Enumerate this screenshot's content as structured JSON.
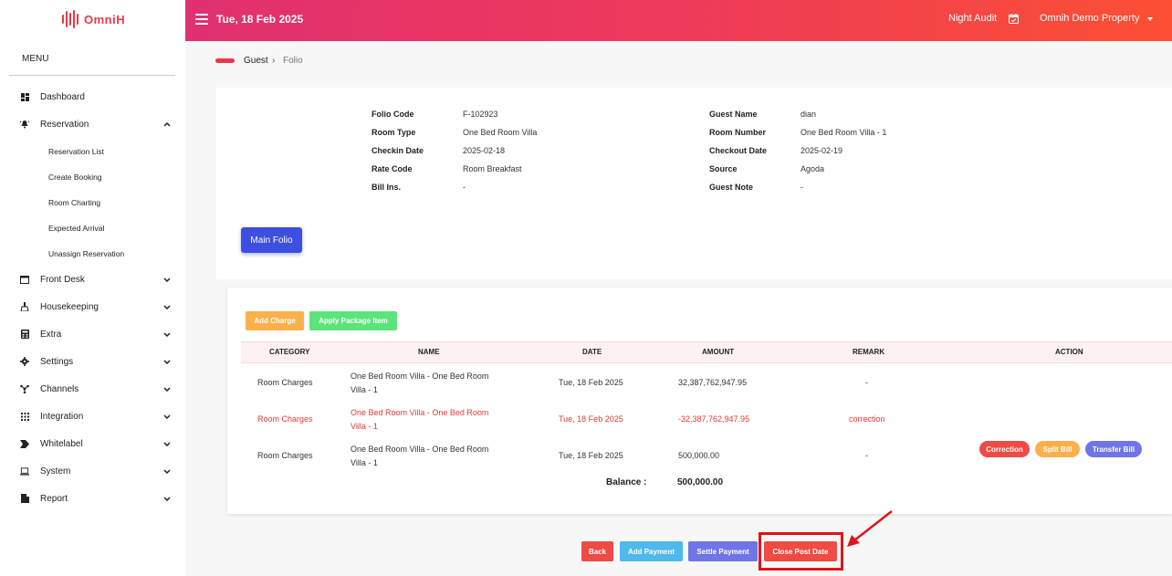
{
  "brand": {
    "name": "OmniH",
    "color": "#e8394b"
  },
  "sidebar": {
    "menu_title": "MENU",
    "items": [
      {
        "label": "Dashboard",
        "icon": "dashboard-icon",
        "expandable": false
      },
      {
        "label": "Reservation",
        "icon": "bell-icon",
        "expandable": true,
        "expanded": true
      },
      {
        "label": "Front Desk",
        "icon": "window-icon",
        "expandable": true
      },
      {
        "label": "Housekeeping",
        "icon": "broom-icon",
        "expandable": true
      },
      {
        "label": "Extra",
        "icon": "calculator-icon",
        "expandable": true
      },
      {
        "label": "Settings",
        "icon": "gear-icon",
        "expandable": true
      },
      {
        "label": "Channels",
        "icon": "network-icon",
        "expandable": true
      },
      {
        "label": "Integration",
        "icon": "grid-icon",
        "expandable": true
      },
      {
        "label": "Whitelabel",
        "icon": "tag-icon",
        "expandable": true
      },
      {
        "label": "System",
        "icon": "laptop-icon",
        "expandable": true
      },
      {
        "label": "Report",
        "icon": "file-icon",
        "expandable": true
      }
    ],
    "reservation_sub": [
      "Reservation List",
      "Create Booking",
      "Room Charting",
      "Expected Arrival",
      "Unassign Reservation"
    ]
  },
  "topbar": {
    "date": "Tue, 18 Feb 2025",
    "night_audit": "Night Audit",
    "property": "Omnih Demo Property",
    "gradient": [
      "#e0306f",
      "#fb5033"
    ]
  },
  "breadcrumb": {
    "first": "Guest",
    "separator": "›",
    "current": "Folio"
  },
  "folio_info": {
    "left": [
      {
        "label": "Folio Code",
        "value": "F-102923"
      },
      {
        "label": "Room Type",
        "value": "One Bed Room Villa"
      },
      {
        "label": "Checkin Date",
        "value": "2025-02-18"
      },
      {
        "label": "Rate Code",
        "value": "Room Breakfast"
      },
      {
        "label": "Bill Ins.",
        "value": "-"
      }
    ],
    "right": [
      {
        "label": "Guest Name",
        "value": "dian"
      },
      {
        "label": "Room Number",
        "value": "One Bed Room Villa - 1"
      },
      {
        "label": "Checkout Date",
        "value": "2025-02-19"
      },
      {
        "label": "Source",
        "value": "Agoda"
      },
      {
        "label": "Guest Note",
        "value": "-"
      }
    ]
  },
  "main_folio_label": "Main Folio",
  "actions": {
    "add_charge": "Add Charge",
    "apply_package": "Apply Package Item"
  },
  "table": {
    "headers": [
      "CATEGORY",
      "NAME",
      "DATE",
      "AMOUNT",
      "REMARK",
      "ACTION"
    ],
    "rows": [
      {
        "category": "Room Charges",
        "name_line1": "One Bed Room Villa - One Bed Room",
        "name_line2": "Villa - 1",
        "date": "Tue, 18 Feb 2025",
        "amount": "32,387,762,947.95",
        "remark": "-",
        "style": "normal"
      },
      {
        "category": "Room Charges",
        "name_line1": "One Bed Room Villa - One Bed Room",
        "name_line2": "Villa - 1",
        "date": "Tue, 18 Feb 2025",
        "amount": "-32,387,762,947.95",
        "remark": "correction",
        "style": "red"
      },
      {
        "category": "Room Charges",
        "name_line1": "One Bed Room Villa - One Bed Room",
        "name_line2": "Villa - 1",
        "date": "Tue, 18 Feb 2025",
        "amount": "500,000.00",
        "remark": "-",
        "style": "normal"
      }
    ],
    "row_actions": {
      "correction": "Correction",
      "split_bill": "Split Bill",
      "transfer_bill": "Transfer Bill"
    },
    "balance_label": "Balance :",
    "balance_value": "500,000.00"
  },
  "footer_buttons": {
    "back": "Back",
    "add_payment": "Add Payment",
    "settle_payment": "Settle Payment",
    "close_post_date": "Close Post Date"
  },
  "colors": {
    "primary": "#3c4fe0",
    "warning": "#fbb04b",
    "success": "#5be47a",
    "danger": "#ee4b45",
    "info": "#4fb8ec",
    "indigo": "#6f75e6",
    "annotation": "#e0141a"
  }
}
